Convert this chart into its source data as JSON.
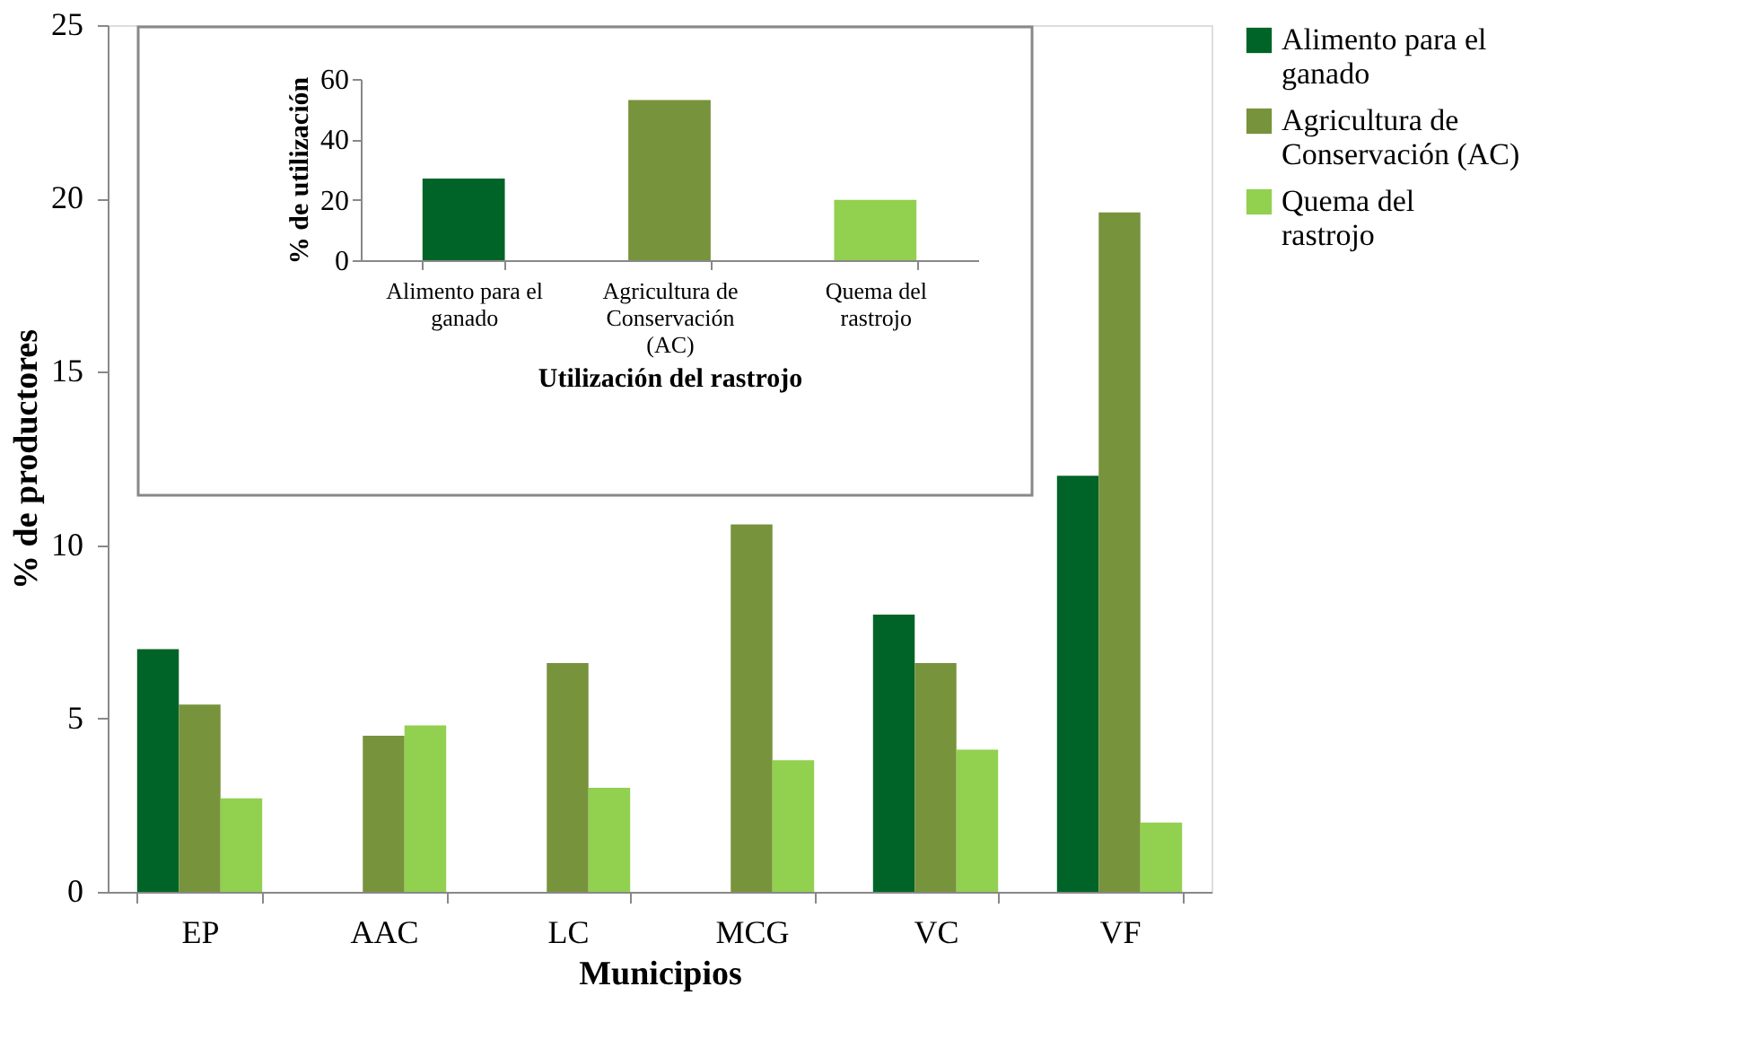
{
  "chart_data": [
    {
      "type": "bar",
      "categories": [
        "EP",
        "AAC",
        "LC",
        "MCG",
        "VC",
        "VF"
      ],
      "xlabel": "Municipios",
      "ylabel": "% de productores",
      "ylim": [
        0,
        25
      ],
      "yticks": [
        0,
        5,
        10,
        15,
        20,
        25
      ],
      "legend": "right",
      "grid": false,
      "series": [
        {
          "name": "Alimento para el ganado",
          "color": "#006428",
          "values": [
            7,
            0,
            0,
            0,
            8,
            12
          ]
        },
        {
          "name": "Agricultura de Conservación (AC)",
          "color": "#77933c",
          "values": [
            5.4,
            4.5,
            6.6,
            10.6,
            6.6,
            19.6
          ]
        },
        {
          "name": "Quema del rastrojo",
          "color": "#92d050",
          "values": [
            2.7,
            4.8,
            3.0,
            3.8,
            4.1,
            2.0
          ]
        }
      ]
    },
    {
      "type": "bar",
      "categories": [
        "Alimento para el ganado",
        "Agricultura de Conservación (AC)",
        "Quema del rastrojo"
      ],
      "values": [
        27,
        53,
        20
      ],
      "colors": [
        "#006428",
        "#77933c",
        "#92d050"
      ],
      "xlabel": "Utilización del rastrojo",
      "ylabel": "% de utilización",
      "ylim": [
        0,
        60
      ],
      "yticks": [
        0,
        20,
        40,
        60
      ],
      "grid": false
    }
  ]
}
